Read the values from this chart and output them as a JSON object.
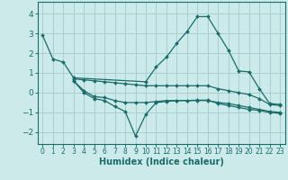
{
  "bg_color": "#cceaea",
  "grid_color": "#aacece",
  "line_color": "#1a6b6b",
  "xlabel": "Humidex (Indice chaleur)",
  "xlim": [
    -0.5,
    23.5
  ],
  "ylim": [
    -2.6,
    4.6
  ],
  "xticks": [
    0,
    1,
    2,
    3,
    4,
    5,
    6,
    7,
    8,
    9,
    10,
    11,
    12,
    13,
    14,
    15,
    16,
    17,
    18,
    19,
    20,
    21,
    22,
    23
  ],
  "yticks": [
    -2,
    -1,
    0,
    1,
    2,
    3,
    4
  ],
  "lines": [
    {
      "x": [
        0,
        1,
        2,
        3,
        10,
        11,
        12,
        13,
        14,
        15,
        16,
        17,
        18,
        19,
        20,
        21,
        22,
        23
      ],
      "y": [
        2.9,
        1.7,
        1.55,
        0.75,
        0.55,
        1.3,
        1.8,
        2.5,
        3.1,
        3.85,
        3.85,
        3.0,
        2.15,
        1.1,
        1.05,
        0.2,
        -0.55,
        -0.6
      ]
    },
    {
      "x": [
        3,
        4,
        5,
        6,
        7,
        8,
        9,
        10,
        11,
        12,
        13,
        14,
        15,
        16,
        17,
        18,
        19,
        20,
        21,
        22,
        23
      ],
      "y": [
        0.7,
        0.65,
        0.6,
        0.55,
        0.5,
        0.45,
        0.4,
        0.35,
        0.35,
        0.35,
        0.35,
        0.35,
        0.35,
        0.35,
        0.2,
        0.1,
        0.0,
        -0.1,
        -0.3,
        -0.6,
        -0.65
      ]
    },
    {
      "x": [
        3,
        4,
        5,
        6,
        7,
        8,
        9,
        10,
        11,
        12,
        13,
        14,
        15,
        16,
        17,
        18,
        19,
        20,
        21,
        22,
        23
      ],
      "y": [
        0.6,
        0.1,
        -0.2,
        -0.25,
        -0.4,
        -0.5,
        -0.5,
        -0.5,
        -0.45,
        -0.4,
        -0.4,
        -0.4,
        -0.4,
        -0.4,
        -0.5,
        -0.55,
        -0.65,
        -0.75,
        -0.85,
        -0.95,
        -1.0
      ]
    },
    {
      "x": [
        3,
        4,
        5,
        6,
        7,
        8,
        9,
        10,
        11,
        12,
        13,
        14,
        15,
        16,
        17,
        18,
        19,
        20,
        21,
        22,
        23
      ],
      "y": [
        0.6,
        0.0,
        -0.3,
        -0.4,
        -0.7,
        -0.95,
        -2.2,
        -1.1,
        -0.5,
        -0.45,
        -0.4,
        -0.4,
        -0.38,
        -0.38,
        -0.55,
        -0.65,
        -0.75,
        -0.85,
        -0.9,
        -1.0,
        -1.05
      ]
    }
  ]
}
